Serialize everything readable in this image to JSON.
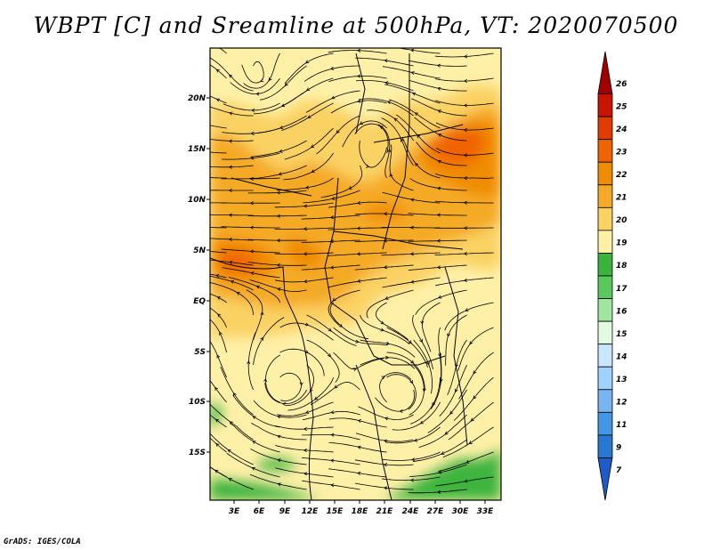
{
  "title": "WBPT [C] and Sreamline at 500hPa, VT: 2020070500",
  "credit": "GrADS: IGES/COLA",
  "map": {
    "lat_labels": [
      "20N",
      "15N",
      "10N",
      "5N",
      "EQ",
      "5S",
      "10S",
      "15S"
    ],
    "lon_labels": [
      "3E",
      "6E",
      "9E",
      "12E",
      "15E",
      "18E",
      "21E",
      "24E",
      "27E",
      "30E",
      "33E"
    ],
    "fields": [
      "wet-bulb potential temperature",
      "streamlines"
    ]
  },
  "colorbar": {
    "labels": [
      "26",
      "25",
      "24",
      "23",
      "22",
      "21",
      "20",
      "19",
      "18",
      "17",
      "16",
      "15",
      "14",
      "13",
      "12",
      "11",
      "9",
      "7"
    ],
    "colors": [
      "#a00000",
      "#c81400",
      "#e13c00",
      "#f06400",
      "#f08c00",
      "#f5aa28",
      "#fad264",
      "#fff0a8",
      "#3cb43c",
      "#5ac85a",
      "#a0e6a0",
      "#e1fae1",
      "#c8e6ff",
      "#a0d2ff",
      "#78b4f0",
      "#4696e6",
      "#2878d2",
      "#1e5ac8"
    ]
  }
}
